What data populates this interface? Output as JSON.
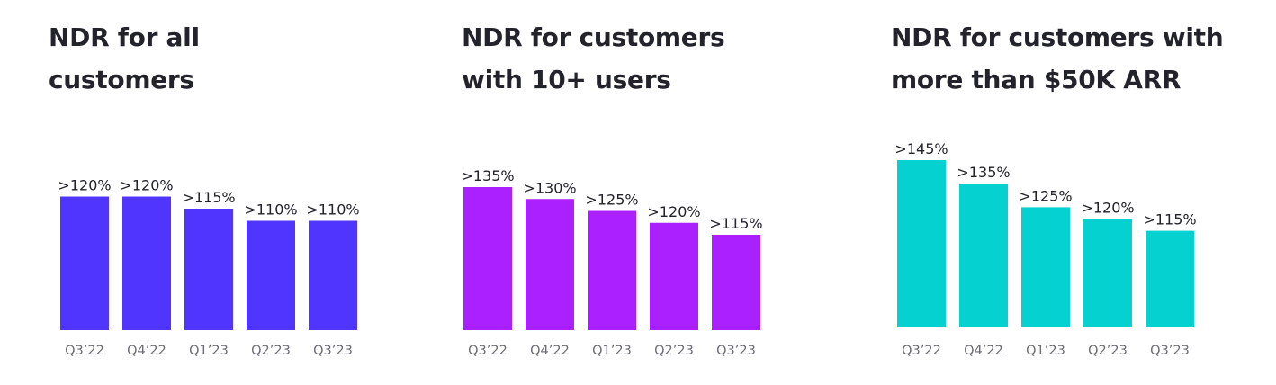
{
  "chart_data": [
    {
      "type": "bar",
      "title": "NDR for all\ncustomers",
      "categories": [
        "Q3’22",
        "Q4’22",
        "Q1’23",
        "Q2’23",
        "Q3’23"
      ],
      "values": [
        120,
        120,
        115,
        110,
        110
      ],
      "value_labels": [
        ">120%",
        ">120%",
        ">115%",
        ">110%",
        ">110%"
      ],
      "color": "#5035ff",
      "ylim": [
        65,
        145
      ],
      "grid": false,
      "legend": "none"
    },
    {
      "type": "bar",
      "title": "NDR for customers\nwith 10+ users",
      "categories": [
        "Q3’22",
        "Q4’22",
        "Q1’23",
        "Q2’23",
        "Q3’23"
      ],
      "values": [
        135,
        130,
        125,
        120,
        115
      ],
      "value_labels": [
        ">135%",
        ">130%",
        ">125%",
        ">120%",
        ">115%"
      ],
      "color": "#ab20ff",
      "ylim": [
        75,
        145
      ],
      "grid": false,
      "legend": "none"
    },
    {
      "type": "bar",
      "title": "NDR for customers with\nmore than $50K ARR",
      "categories": [
        "Q3’22",
        "Q4’22",
        "Q1’23",
        "Q2’23",
        "Q3’23"
      ],
      "values": [
        145,
        135,
        125,
        120,
        115
      ],
      "value_labels": [
        ">145%",
        ">135%",
        ">125%",
        ">120%",
        ">115%"
      ],
      "color": "#05d1d1",
      "ylim": [
        74,
        145
      ],
      "grid": false,
      "legend": "none"
    }
  ]
}
